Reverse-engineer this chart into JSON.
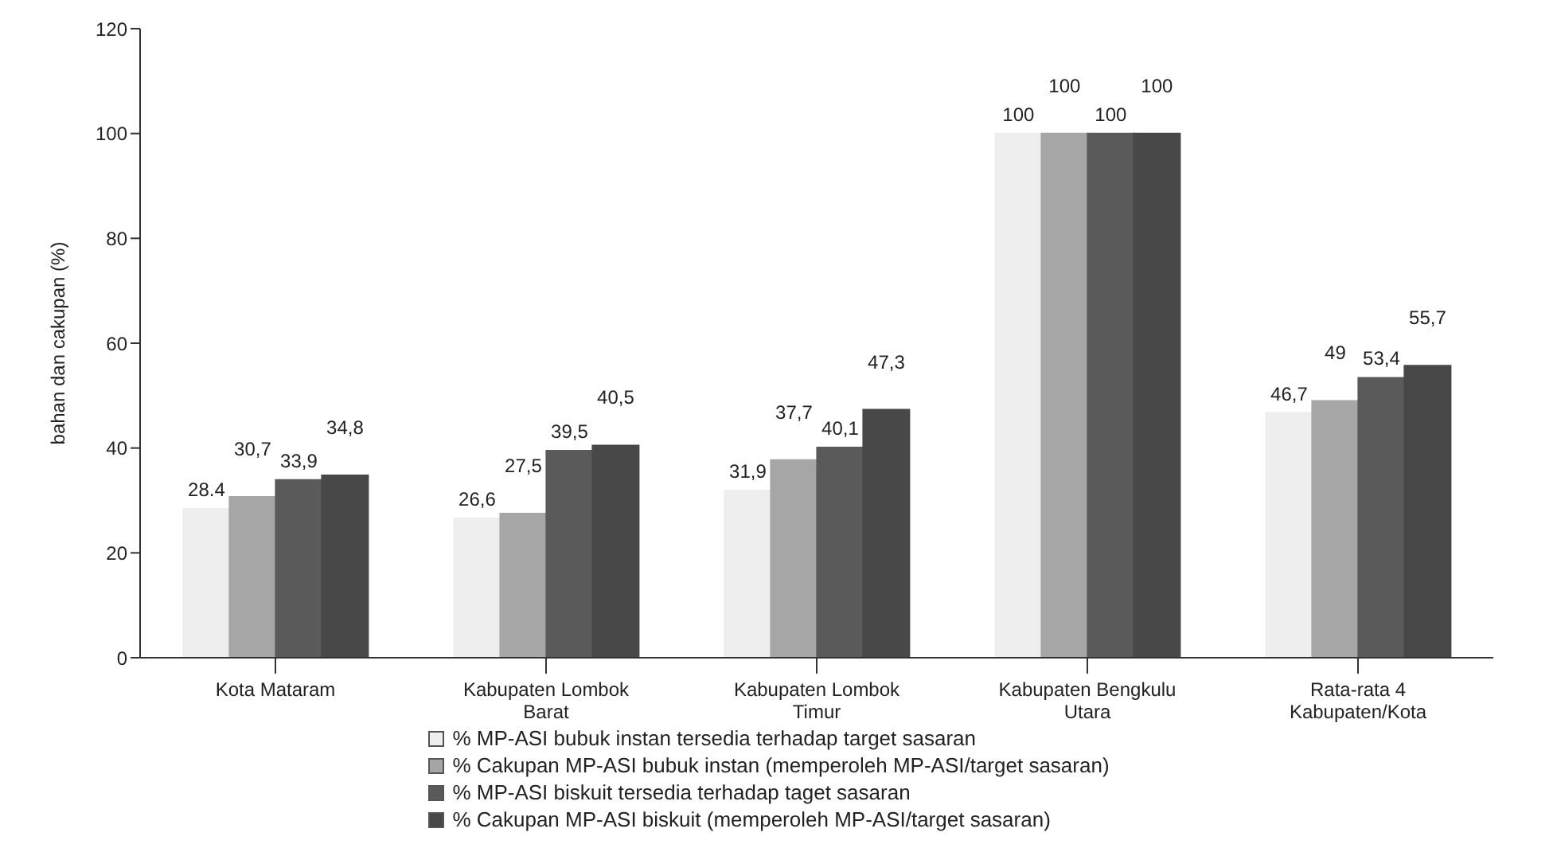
{
  "chart_data": {
    "type": "bar",
    "ylabel": "bahan dan cakupan (%)",
    "categories": [
      "Kota Mataram",
      "Kabupaten Lombok Barat",
      "Kabupaten Lombok Timur",
      "Kabupaten Bengkulu Utara",
      "Rata-rata 4 Kabupaten/Kota"
    ],
    "series": [
      {
        "name": "% MP-ASI bubuk instan tersedia terhadap target sasaran",
        "color": "#eeeeee",
        "values": [
          28.4,
          26.6,
          31.9,
          100,
          46.7
        ],
        "value_labels": [
          "28.4",
          "26,6",
          "31,9",
          "100",
          "46,7"
        ]
      },
      {
        "name": "% Cakupan MP-ASI bubuk instan (memperoleh MP-ASI/target sasaran)",
        "color": "#a6a6a6",
        "values": [
          30.7,
          27.5,
          37.7,
          100,
          49
        ],
        "value_labels": [
          "30,7",
          "27,5",
          "37,7",
          "100",
          "49"
        ]
      },
      {
        "name": "% MP-ASI biskuit tersedia terhadap taget sasaran",
        "color": "#5a5a5a",
        "values": [
          33.9,
          39.5,
          40.1,
          100,
          53.4
        ],
        "value_labels": [
          "33,9",
          "39,5",
          "40,1",
          "100",
          "53,4"
        ]
      },
      {
        "name": "% Cakupan MP-ASI biskuit (memperoleh MP-ASI/target sasaran)",
        "color": "#484848",
        "values": [
          34.8,
          40.5,
          47.3,
          100,
          55.7
        ],
        "value_labels": [
          "34,8",
          "40,5",
          "47,3",
          "100",
          "55,7"
        ]
      }
    ],
    "ylim": [
      0,
      120
    ],
    "yticks": [
      0,
      20,
      40,
      60,
      80,
      100,
      120
    ],
    "grid": false,
    "legend": "bottom"
  }
}
